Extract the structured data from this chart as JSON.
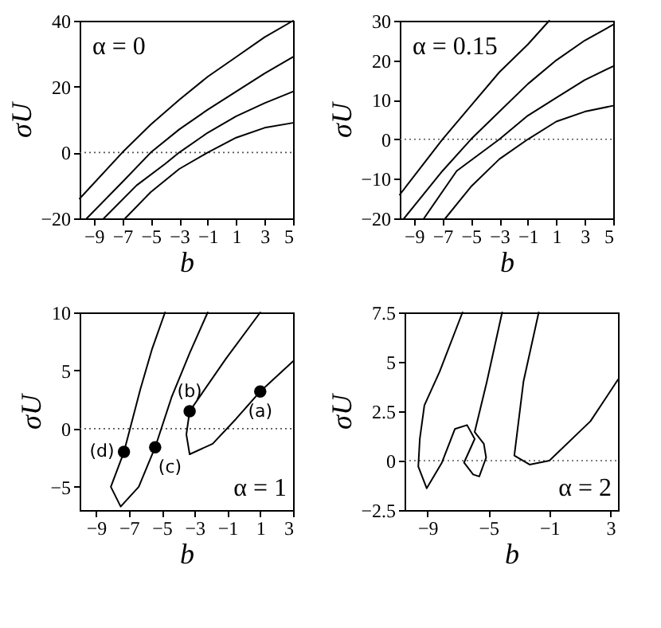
{
  "chart_data": [
    {
      "type": "line",
      "xlabel": "b",
      "ylabel": "σU",
      "xlim": [
        -10,
        5
      ],
      "xticks": [
        -9,
        -7,
        -5,
        -3,
        -1,
        1,
        3,
        5
      ],
      "ylim": [
        -20,
        40
      ],
      "yticks": [
        -20,
        0,
        20,
        40
      ],
      "grid": false,
      "marker": "none",
      "line_style": "solid",
      "annotations": [
        "α = 0"
      ],
      "ref_lines": [
        {
          "axis": "y",
          "value": 0,
          "line_style": "dotted",
          "color": "#555555"
        }
      ],
      "series": [
        {
          "color": "#000000",
          "x": [
            -10,
            -7,
            -5,
            -3,
            -1,
            1,
            3,
            5
          ],
          "values": [
            -14,
            0,
            8.5,
            16,
            23,
            29,
            35,
            40
          ]
        },
        {
          "color": "#000000",
          "x": [
            -9.5,
            -7,
            -5,
            -3,
            -1,
            1,
            3,
            5
          ],
          "values": [
            -20,
            -9,
            0,
            7,
            13,
            18.5,
            24,
            29
          ]
        },
        {
          "color": "#000000",
          "x": [
            -8.3,
            -6,
            -4,
            -3,
            -1,
            1,
            3,
            5
          ],
          "values": [
            -20,
            -10,
            -3.5,
            0,
            6,
            11,
            15,
            18.5
          ]
        },
        {
          "color": "#000000",
          "x": [
            -6.8,
            -5,
            -3,
            -1,
            1,
            3,
            5
          ],
          "values": [
            -20,
            -12,
            -5,
            0,
            4.5,
            7.5,
            9
          ]
        }
      ]
    },
    {
      "type": "line",
      "xlabel": "b",
      "ylabel": "σU",
      "xlim": [
        -10,
        5
      ],
      "xticks": [
        -9,
        -7,
        -5,
        -3,
        -1,
        1,
        3,
        5
      ],
      "ylim": [
        -20,
        30
      ],
      "yticks": [
        -20,
        -10,
        0,
        10,
        20,
        30
      ],
      "grid": false,
      "marker": "none",
      "line_style": "solid",
      "annotations": [
        "α = 0.15"
      ],
      "ref_lines": [
        {
          "axis": "y",
          "value": 0,
          "line_style": "dotted",
          "color": "#555555"
        }
      ],
      "series": [
        {
          "color": "#000000",
          "x": [
            -10,
            -7,
            -5,
            -3,
            -1,
            0.5
          ],
          "values": [
            -14,
            0,
            8.5,
            17,
            24,
            30
          ]
        },
        {
          "color": "#000000",
          "x": [
            -9.7,
            -7,
            -5,
            -3,
            -1,
            1,
            3,
            5
          ],
          "values": [
            -20,
            -8,
            0,
            7,
            14,
            20,
            25,
            29
          ]
        },
        {
          "color": "#000000",
          "x": [
            -8.3,
            -6,
            -3,
            -1,
            1,
            3,
            5
          ],
          "values": [
            -20,
            -8,
            0,
            6,
            10.5,
            15,
            18.5
          ]
        },
        {
          "color": "#000000",
          "x": [
            -6.8,
            -5,
            -3,
            -1,
            1,
            3,
            5
          ],
          "values": [
            -20,
            -12,
            -5,
            0,
            4.5,
            7,
            8.5
          ]
        }
      ]
    },
    {
      "type": "line",
      "xlabel": "b",
      "ylabel": "σU",
      "xlim": [
        -10,
        3
      ],
      "xticks": [
        -9,
        -7,
        -5,
        -3,
        -1,
        1,
        3
      ],
      "ylim": [
        -7,
        10
      ],
      "yticks": [
        -5,
        0,
        5,
        10
      ],
      "grid": false,
      "marker": "none",
      "line_style": "solid",
      "annotations": [
        "α = 1",
        {
          "text": "(a)",
          "x": 1,
          "y": 3.2
        },
        {
          "text": "(b)",
          "x": -3.3,
          "y": 1.5
        },
        {
          "text": "(c)",
          "x": -5.4,
          "y": -1.6
        },
        {
          "text": "(d)",
          "x": -7.3,
          "y": -2
        }
      ],
      "ref_lines": [
        {
          "axis": "y",
          "value": 0,
          "line_style": "dotted",
          "color": "#555555"
        }
      ],
      "series": [
        {
          "color": "#000000",
          "x": [
            -4.8,
            -5.6,
            -6.3,
            -7.3,
            -8.1,
            -7.5,
            -6.4,
            -5.4,
            -4.4,
            -3.3,
            -2.2
          ],
          "values": [
            10,
            6.8,
            3.4,
            -2,
            -5,
            -6.7,
            -5,
            -1.6,
            2.7,
            6.5,
            10
          ]
        },
        {
          "color": "#000000",
          "x": [
            1,
            -1.1,
            -3.3,
            -3.5,
            -3.3,
            -1.9,
            -0.5,
            1,
            3
          ],
          "values": [
            10,
            6,
            1.5,
            -0.5,
            -2.2,
            -1.3,
            0.8,
            3.2,
            5.8
          ]
        },
        {
          "type": "scatter",
          "marker": "circle",
          "color": "#000000",
          "x": [
            1,
            -3.3,
            -5.4,
            -7.3
          ],
          "values": [
            3.2,
            1.5,
            -1.6,
            -2
          ]
        }
      ]
    },
    {
      "type": "line",
      "xlabel": "b",
      "ylabel": "σU",
      "xlim": [
        -10.5,
        3.5
      ],
      "xticks": [
        -9,
        -5,
        -1,
        3
      ],
      "ylim": [
        -2.5,
        7.5
      ],
      "yticks": [
        -2.5,
        0,
        2.5,
        5,
        7.5
      ],
      "grid": false,
      "marker": "none",
      "line_style": "solid",
      "annotations": [
        "α = 2"
      ],
      "ref_lines": [
        {
          "axis": "y",
          "value": 0,
          "line_style": "dotted",
          "color": "#555555"
        }
      ],
      "series": [
        {
          "color": "#000000",
          "x": [
            -6.7,
            -8.2,
            -9.2,
            -9.5,
            -9.6,
            -9.05,
            -8.05,
            -7.2,
            -6.4,
            -5.9,
            -6.6,
            -6.0,
            -5.6,
            -5.15,
            -5.3,
            -5.9,
            -5.1,
            -4.1
          ],
          "values": [
            7.5,
            4.5,
            2.8,
            1.1,
            -0.3,
            -1.4,
            -0.1,
            1.6,
            1.8,
            1.1,
            -0.1,
            -0.7,
            -0.8,
            0.15,
            0.85,
            1.45,
            4,
            7.5
          ]
        },
        {
          "color": "#000000",
          "x": [
            -1.7,
            -2.7,
            -3.3,
            -2.3,
            -1,
            1.7,
            3.5
          ],
          "values": [
            7.5,
            4,
            0.26,
            -0.2,
            0,
            2,
            4.1
          ]
        }
      ]
    }
  ]
}
